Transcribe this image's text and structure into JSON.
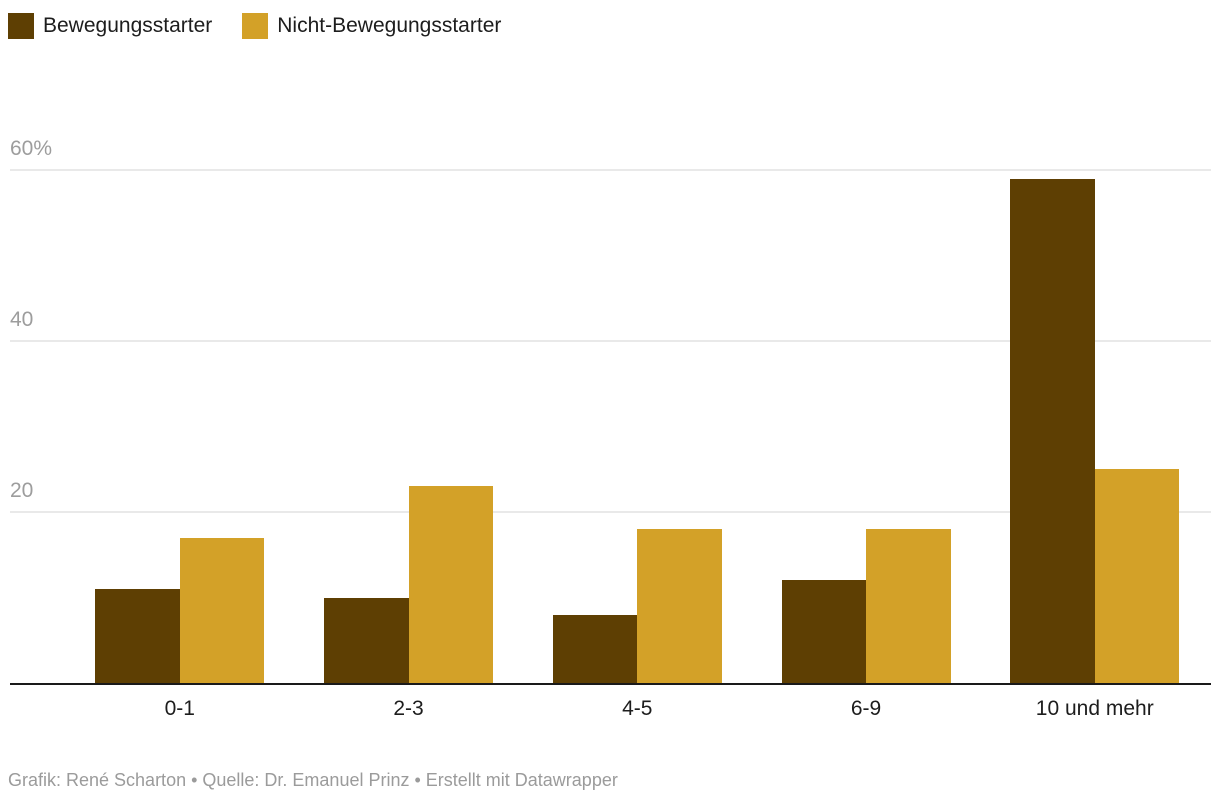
{
  "chart_data": {
    "type": "bar",
    "title": "",
    "categories": [
      "0-1",
      "2-3",
      "4-5",
      "6-9",
      "10 und mehr"
    ],
    "series": [
      {
        "name": "Bewegungsstarter",
        "color": "#5e3f03",
        "values": [
          11,
          10,
          8,
          12,
          59
        ]
      },
      {
        "name": "Nicht-Bewegungsstarter",
        "color": "#d3a128",
        "values": [
          17,
          23,
          18,
          18,
          25
        ]
      }
    ],
    "value_suffix": "%",
    "ylim": [
      0,
      62
    ],
    "yticks": [
      {
        "value": 20,
        "label": "20"
      },
      {
        "value": 40,
        "label": "40"
      },
      {
        "value": 60,
        "label": "60%"
      }
    ],
    "grid": true,
    "legend_position": "top-left"
  },
  "colors": {
    "grid": "#e9e9e9",
    "axis": "#1a1a1a",
    "tick_text": "#9d9d9d",
    "label_text": "#1d1d1d",
    "footer_text": "#9b9b9b"
  },
  "footer": {
    "text": "Grafik: René Scharton • Quelle: Dr. Emanuel Prinz • Erstellt mit Datawrapper"
  }
}
